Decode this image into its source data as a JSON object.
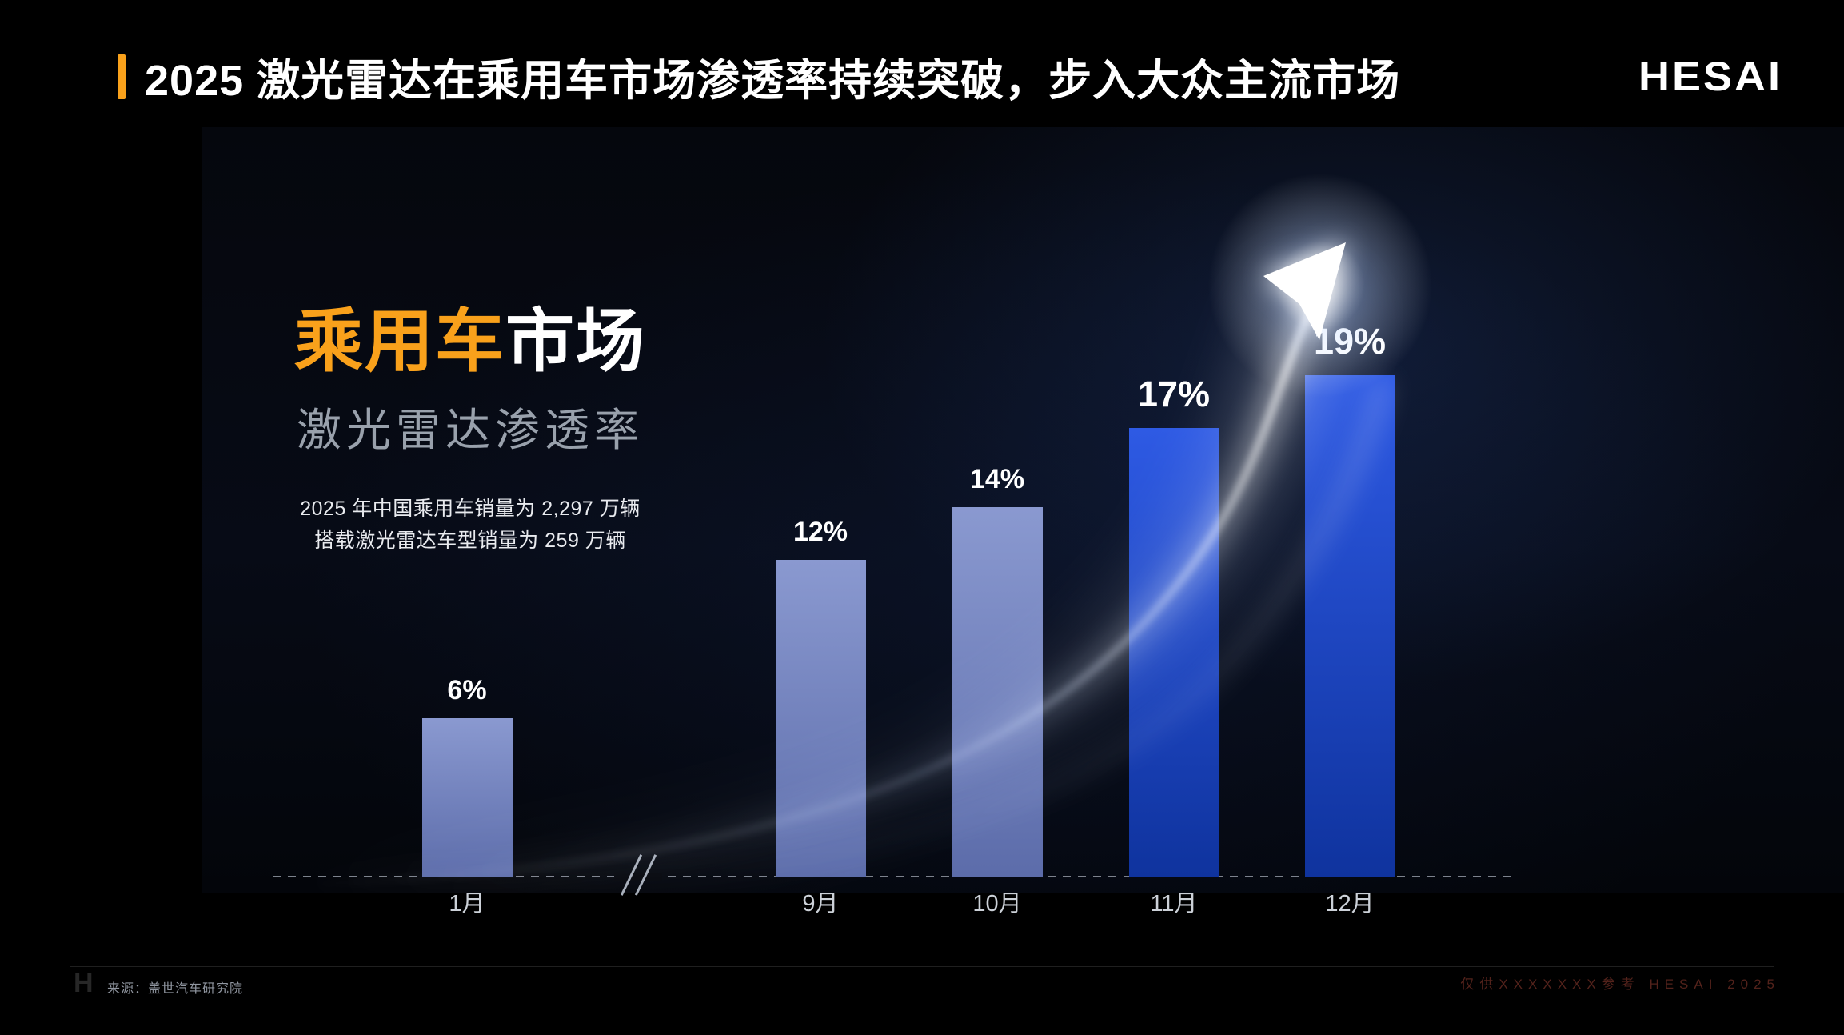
{
  "slide": {
    "title": "2025 激光雷达在乘用车市场渗透率持续突破，步入大众主流市场",
    "logo": "HESAI",
    "accent_color": "#F9A11B"
  },
  "intro": {
    "headline_highlight": "乘用车",
    "headline_rest": "市场",
    "subheadline": "激光雷达渗透率",
    "note_line1": "2025 年中国乘用车销量为 2,297 万辆",
    "note_line2": "搭载激光雷达车型销量为 259 万辆"
  },
  "chart_data": {
    "type": "bar",
    "title": "乘用车市场激光雷达渗透率",
    "categories": [
      "1月",
      "9月",
      "10月",
      "11月",
      "12月"
    ],
    "values": [
      6,
      12,
      14,
      17,
      19
    ],
    "labels": [
      "6%",
      "12%",
      "14%",
      "17%",
      "19%"
    ],
    "unit": "%",
    "emphasis": [
      false,
      false,
      false,
      true,
      true
    ],
    "axis_break_after_first": true,
    "xlabel": "",
    "ylabel": "",
    "ylim": [
      0,
      22
    ],
    "grid": false,
    "legend": false,
    "colors": {
      "light": [
        "#8A99D0",
        "#5C6CAA"
      ],
      "bright": [
        "#2E5AE4",
        "#0F339E"
      ]
    },
    "annotations": [
      "glowing upward arrow indicating growth trend"
    ]
  },
  "footer": {
    "h_mark": "H",
    "source": "来源：盖世汽车研究院",
    "watermark": "仅供XXXXXXX参考 HESAI 2025"
  }
}
